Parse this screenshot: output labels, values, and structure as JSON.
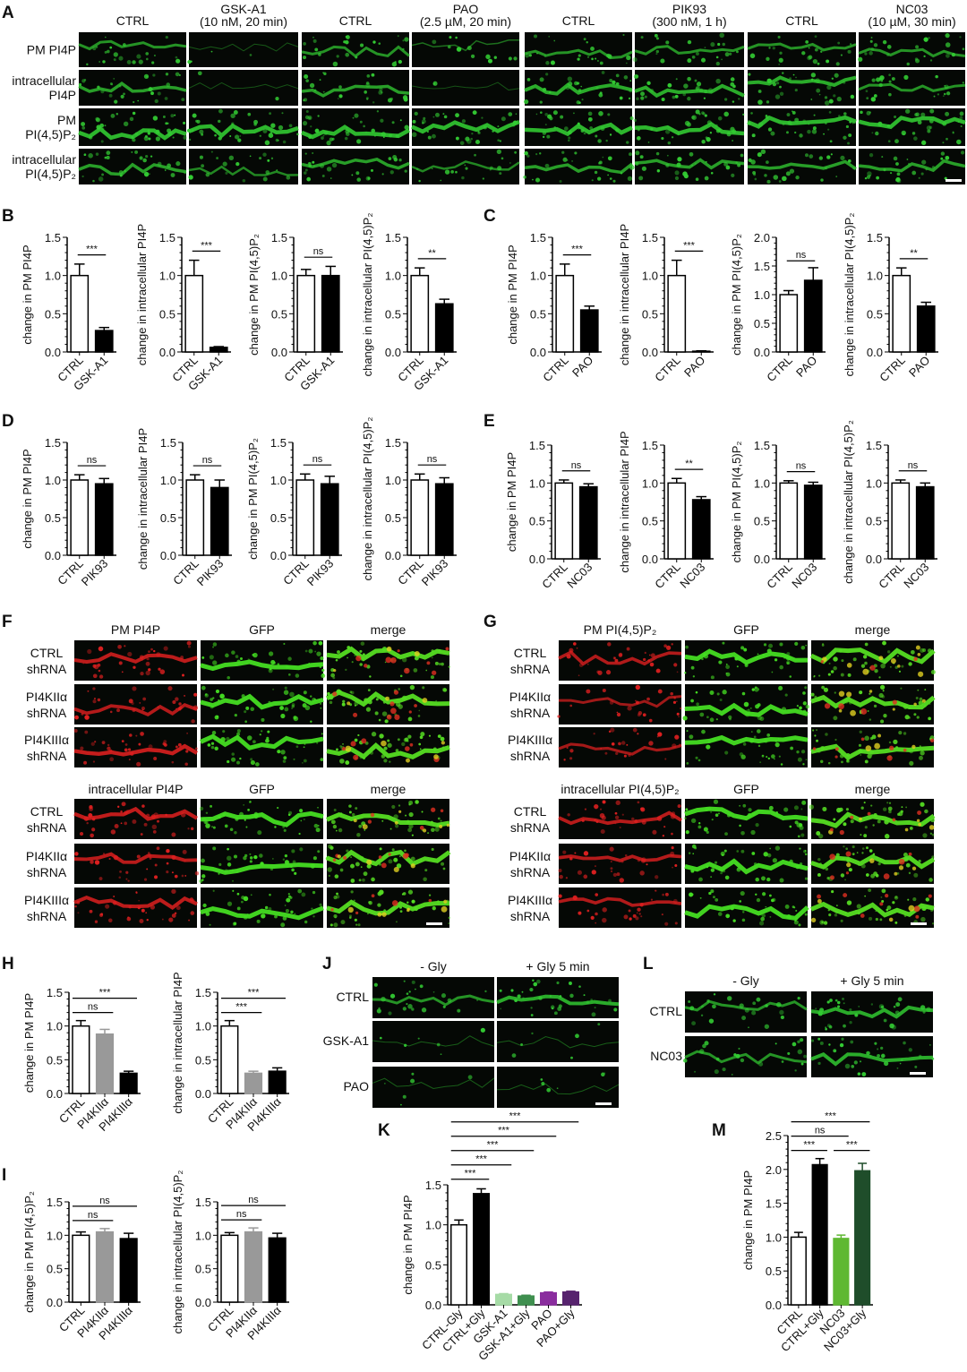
{
  "panel_letters": [
    "A",
    "B",
    "C",
    "D",
    "E",
    "F",
    "G",
    "H",
    "I",
    "J",
    "K",
    "L",
    "M"
  ],
  "panel_A": {
    "columns": [
      [
        "CTRL"
      ],
      [
        "GSK-A1",
        "(10 nM, 20 min)"
      ],
      [
        "CTRL"
      ],
      [
        "PAO",
        "(2.5 µM, 20 min)"
      ],
      [
        "CTRL"
      ],
      [
        "PIK93",
        "(300 nM, 1 h)"
      ],
      [
        "CTRL"
      ],
      [
        "NC03",
        "(10 µM, 30 min)"
      ]
    ],
    "rows": [
      [
        "PM PI4P"
      ],
      [
        "intracellular",
        "PI4P"
      ],
      [
        "PM",
        "PI(4,5)P₂"
      ],
      [
        "intracellular",
        "PI(4,5)P₂"
      ]
    ]
  },
  "panel_F": {
    "top_columns": [
      "PM PI4P",
      "GFP",
      "merge"
    ],
    "bottom_columns": [
      "intracellular PI4P",
      "GFP",
      "merge"
    ],
    "rows": [
      [
        "CTRL",
        "shRNA"
      ],
      [
        "PI4KIIα",
        "shRNA"
      ],
      [
        "PI4KIIIα",
        "shRNA"
      ]
    ]
  },
  "panel_G": {
    "top_columns": [
      "PM PI(4,5)P₂",
      "GFP",
      "merge"
    ],
    "bottom_columns": [
      "intracellular PI(4,5)P₂",
      "GFP",
      "merge"
    ],
    "rows": [
      [
        "CTRL",
        "shRNA"
      ],
      [
        "PI4KIIα",
        "shRNA"
      ],
      [
        "PI4KIIIα",
        "shRNA"
      ]
    ]
  },
  "panel_J": {
    "columns": [
      "- Gly",
      "+ Gly 5 min"
    ],
    "rows": [
      "CTRL",
      "GSK-A1",
      "PAO"
    ]
  },
  "panel_L": {
    "columns": [
      "- Gly",
      "+ Gly 5 min"
    ],
    "rows": [
      "CTRL",
      "NC03"
    ]
  },
  "colors": {
    "pm_channel": "#33cc33",
    "shRNA_channel": "#e02020",
    "white_bar": "#ffffff",
    "black_bar": "#000000"
  },
  "chart_data": [
    {
      "panel": "B",
      "type": "bar",
      "ylabel": "change in PM PI4P",
      "categories": [
        "CTRL",
        "GSK-A1"
      ],
      "values": [
        1.0,
        0.28
      ],
      "errors": [
        0.15,
        0.04
      ],
      "ylim": [
        0,
        1.5
      ],
      "yticks": [
        0,
        0.5,
        1.0,
        1.5
      ],
      "colors": [
        "#ffffff",
        "#000000"
      ],
      "significance": [
        {
          "from": 0,
          "to": 1,
          "label": "***"
        }
      ]
    },
    {
      "panel": "B",
      "type": "bar",
      "ylabel": "change in intracellular PI4P",
      "categories": [
        "CTRL",
        "GSK-A1"
      ],
      "values": [
        1.0,
        0.06
      ],
      "errors": [
        0.2,
        0.01
      ],
      "ylim": [
        0,
        1.5
      ],
      "yticks": [
        0,
        0.5,
        1.0,
        1.5
      ],
      "colors": [
        "#ffffff",
        "#000000"
      ],
      "significance": [
        {
          "from": 0,
          "to": 1,
          "label": "***"
        }
      ]
    },
    {
      "panel": "B",
      "type": "bar",
      "ylabel": "change in PM PI(4,5)P₂",
      "categories": [
        "CTRL",
        "GSK-A1"
      ],
      "values": [
        1.0,
        1.0
      ],
      "errors": [
        0.08,
        0.12
      ],
      "ylim": [
        0,
        1.5
      ],
      "yticks": [
        0,
        0.5,
        1.0,
        1.5
      ],
      "colors": [
        "#ffffff",
        "#000000"
      ],
      "significance": [
        {
          "from": 0,
          "to": 1,
          "label": "ns"
        }
      ]
    },
    {
      "panel": "B",
      "type": "bar",
      "ylabel": "change in intracellular PI(4,5)P₂",
      "categories": [
        "CTRL",
        "GSK-A1"
      ],
      "values": [
        1.0,
        0.63
      ],
      "errors": [
        0.1,
        0.06
      ],
      "ylim": [
        0,
        1.5
      ],
      "yticks": [
        0,
        0.5,
        1.0,
        1.5
      ],
      "colors": [
        "#ffffff",
        "#000000"
      ],
      "significance": [
        {
          "from": 0,
          "to": 1,
          "label": "**"
        }
      ]
    },
    {
      "panel": "C",
      "type": "bar",
      "ylabel": "change in PM PI4P",
      "categories": [
        "CTRL",
        "PAO"
      ],
      "values": [
        1.0,
        0.55
      ],
      "errors": [
        0.15,
        0.05
      ],
      "ylim": [
        0,
        1.5
      ],
      "yticks": [
        0,
        0.5,
        1.0,
        1.5
      ],
      "colors": [
        "#ffffff",
        "#000000"
      ],
      "significance": [
        {
          "from": 0,
          "to": 1,
          "label": "***"
        }
      ]
    },
    {
      "panel": "C",
      "type": "bar",
      "ylabel": "change in intracellular PI4P",
      "categories": [
        "CTRL",
        "PAO"
      ],
      "values": [
        1.0,
        0.01
      ],
      "errors": [
        0.2,
        0.005
      ],
      "ylim": [
        0,
        1.5
      ],
      "yticks": [
        0,
        0.5,
        1.0,
        1.5
      ],
      "colors": [
        "#ffffff",
        "#000000"
      ],
      "significance": [
        {
          "from": 0,
          "to": 1,
          "label": "***"
        }
      ]
    },
    {
      "panel": "C",
      "type": "bar",
      "ylabel": "change in PM PI(4,5)P₂",
      "categories": [
        "CTRL",
        "PAO"
      ],
      "values": [
        1.0,
        1.25
      ],
      "errors": [
        0.07,
        0.22
      ],
      "ylim": [
        0,
        2.0
      ],
      "yticks": [
        0,
        0.5,
        1.0,
        1.5,
        2.0
      ],
      "colors": [
        "#ffffff",
        "#000000"
      ],
      "significance": [
        {
          "from": 0,
          "to": 1,
          "label": "ns"
        }
      ]
    },
    {
      "panel": "C",
      "type": "bar",
      "ylabel": "change in intracellular PI(4,5)P₂",
      "categories": [
        "CTRL",
        "PAO"
      ],
      "values": [
        1.0,
        0.6
      ],
      "errors": [
        0.1,
        0.05
      ],
      "ylim": [
        0,
        1.5
      ],
      "yticks": [
        0,
        0.5,
        1.0,
        1.5
      ],
      "colors": [
        "#ffffff",
        "#000000"
      ],
      "significance": [
        {
          "from": 0,
          "to": 1,
          "label": "**"
        }
      ]
    },
    {
      "panel": "D",
      "type": "bar",
      "ylabel": "change in PM PI4P",
      "categories": [
        "CTRL",
        "PIK93"
      ],
      "values": [
        1.0,
        0.95
      ],
      "errors": [
        0.07,
        0.07
      ],
      "ylim": [
        0,
        1.5
      ],
      "yticks": [
        0,
        0.5,
        1.0,
        1.5
      ],
      "colors": [
        "#ffffff",
        "#000000"
      ],
      "significance": [
        {
          "from": 0,
          "to": 1,
          "label": "ns"
        }
      ]
    },
    {
      "panel": "D",
      "type": "bar",
      "ylabel": "change in intracellular PI4P",
      "categories": [
        "CTRL",
        "PIK93"
      ],
      "values": [
        1.0,
        0.9
      ],
      "errors": [
        0.07,
        0.1
      ],
      "ylim": [
        0,
        1.5
      ],
      "yticks": [
        0,
        0.5,
        1.0,
        1.5
      ],
      "colors": [
        "#ffffff",
        "#000000"
      ],
      "significance": [
        {
          "from": 0,
          "to": 1,
          "label": "ns"
        }
      ]
    },
    {
      "panel": "D",
      "type": "bar",
      "ylabel": "change in PM PI(4,5)P₂",
      "categories": [
        "CTRL",
        "PIK93"
      ],
      "values": [
        1.0,
        0.95
      ],
      "errors": [
        0.08,
        0.1
      ],
      "ylim": [
        0,
        1.5
      ],
      "yticks": [
        0,
        0.5,
        1.0,
        1.5
      ],
      "colors": [
        "#ffffff",
        "#000000"
      ],
      "significance": [
        {
          "from": 0,
          "to": 1,
          "label": "ns"
        }
      ]
    },
    {
      "panel": "D",
      "type": "bar",
      "ylabel": "change in intracellular PI(4,5)P₂",
      "categories": [
        "CTRL",
        "PIK93"
      ],
      "values": [
        1.0,
        0.95
      ],
      "errors": [
        0.08,
        0.08
      ],
      "ylim": [
        0,
        1.5
      ],
      "yticks": [
        0,
        0.5,
        1.0,
        1.5
      ],
      "colors": [
        "#ffffff",
        "#000000"
      ],
      "significance": [
        {
          "from": 0,
          "to": 1,
          "label": "ns"
        }
      ]
    },
    {
      "panel": "E",
      "type": "bar",
      "ylabel": "change in PM PI4P",
      "categories": [
        "CTRL",
        "NC03"
      ],
      "values": [
        1.0,
        0.95
      ],
      "errors": [
        0.04,
        0.04
      ],
      "ylim": [
        0,
        1.5
      ],
      "yticks": [
        0,
        0.5,
        1.0,
        1.5
      ],
      "colors": [
        "#ffffff",
        "#000000"
      ],
      "significance": [
        {
          "from": 0,
          "to": 1,
          "label": "ns"
        }
      ]
    },
    {
      "panel": "E",
      "type": "bar",
      "ylabel": "change in intracellular PI4P",
      "categories": [
        "CTRL",
        "NC03"
      ],
      "values": [
        1.0,
        0.78
      ],
      "errors": [
        0.06,
        0.04
      ],
      "ylim": [
        0,
        1.5
      ],
      "yticks": [
        0,
        0.5,
        1.0,
        1.5
      ],
      "colors": [
        "#ffffff",
        "#000000"
      ],
      "significance": [
        {
          "from": 0,
          "to": 1,
          "label": "**"
        }
      ]
    },
    {
      "panel": "E",
      "type": "bar",
      "ylabel": "change in PM PI(4,5)P₂",
      "categories": [
        "CTRL",
        "NC03"
      ],
      "values": [
        1.0,
        0.97
      ],
      "errors": [
        0.03,
        0.04
      ],
      "ylim": [
        0,
        1.5
      ],
      "yticks": [
        0,
        0.5,
        1.0,
        1.5
      ],
      "colors": [
        "#ffffff",
        "#000000"
      ],
      "significance": [
        {
          "from": 0,
          "to": 1,
          "label": "ns"
        }
      ]
    },
    {
      "panel": "E",
      "type": "bar",
      "ylabel": "change in intracellular PI(4,5)P₂",
      "categories": [
        "CTRL",
        "NC03"
      ],
      "values": [
        1.0,
        0.95
      ],
      "errors": [
        0.04,
        0.05
      ],
      "ylim": [
        0,
        1.5
      ],
      "yticks": [
        0,
        0.5,
        1.0,
        1.5
      ],
      "colors": [
        "#ffffff",
        "#000000"
      ],
      "significance": [
        {
          "from": 0,
          "to": 1,
          "label": "ns"
        }
      ]
    },
    {
      "panel": "H",
      "type": "bar",
      "ylabel": "change in PM PI4P",
      "categories": [
        "CTRL",
        "PI4KIIα",
        "PI4KIIIα"
      ],
      "values": [
        1.0,
        0.88,
        0.3
      ],
      "errors": [
        0.08,
        0.07,
        0.03
      ],
      "ylim": [
        0,
        1.5
      ],
      "yticks": [
        0,
        0.5,
        1.0,
        1.5
      ],
      "colors": [
        "#ffffff",
        "#999999",
        "#000000"
      ],
      "significance": [
        {
          "from": 0,
          "to": 1,
          "label": "ns"
        },
        {
          "from": 0,
          "to": 2,
          "label": "***"
        }
      ]
    },
    {
      "panel": "H",
      "type": "bar",
      "ylabel": "change in intracellular PI4P",
      "categories": [
        "CTRL",
        "PI4KIIα",
        "PI4KIIIα"
      ],
      "values": [
        1.0,
        0.3,
        0.33
      ],
      "errors": [
        0.08,
        0.03,
        0.05
      ],
      "ylim": [
        0,
        1.5
      ],
      "yticks": [
        0,
        0.5,
        1.0,
        1.5
      ],
      "colors": [
        "#ffffff",
        "#999999",
        "#000000"
      ],
      "significance": [
        {
          "from": 0,
          "to": 1,
          "label": "***"
        },
        {
          "from": 0,
          "to": 2,
          "label": "***"
        }
      ]
    },
    {
      "panel": "I",
      "type": "bar",
      "ylabel": "change in PM PI(4,5)P₂",
      "categories": [
        "CTRL",
        "PI4KIIα",
        "PI4KIIIα"
      ],
      "values": [
        1.0,
        1.05,
        0.95
      ],
      "errors": [
        0.05,
        0.05,
        0.08
      ],
      "ylim": [
        0,
        1.5
      ],
      "yticks": [
        0,
        0.5,
        1.0,
        1.5
      ],
      "colors": [
        "#ffffff",
        "#999999",
        "#000000"
      ],
      "significance": [
        {
          "from": 0,
          "to": 1,
          "label": "ns"
        },
        {
          "from": 0,
          "to": 2,
          "label": "ns"
        }
      ]
    },
    {
      "panel": "I",
      "type": "bar",
      "ylabel": "change in intracellular PI(4,5)P₂",
      "categories": [
        "CTRL",
        "PI4KIIα",
        "PI4KIIIα"
      ],
      "values": [
        1.0,
        1.05,
        0.96
      ],
      "errors": [
        0.04,
        0.06,
        0.07
      ],
      "ylim": [
        0,
        1.5
      ],
      "yticks": [
        0,
        0.5,
        1.0,
        1.5
      ],
      "colors": [
        "#ffffff",
        "#999999",
        "#000000"
      ],
      "significance": [
        {
          "from": 0,
          "to": 1,
          "label": "ns"
        },
        {
          "from": 0,
          "to": 2,
          "label": "ns"
        }
      ]
    },
    {
      "panel": "K",
      "type": "bar",
      "ylabel": "change in PM PI4P",
      "categories": [
        "CTRL-Gly",
        "CTRL+Gly",
        "GSK-A1",
        "GSK-A1+Gly",
        "PAO",
        "PAO+Gly"
      ],
      "values": [
        1.0,
        1.39,
        0.13,
        0.11,
        0.15,
        0.16
      ],
      "errors": [
        0.06,
        0.06,
        0.01,
        0.01,
        0.01,
        0.01
      ],
      "ylim": [
        0,
        1.5
      ],
      "yticks": [
        0,
        0.5,
        1.0,
        1.5
      ],
      "colors": [
        "#ffffff",
        "#000000",
        "#a6dba6",
        "#3f8f4f",
        "#8a2d9e",
        "#57236e"
      ],
      "significance": [
        {
          "from": 0,
          "to": 1,
          "label": "***"
        },
        {
          "from": 0,
          "to": 2,
          "label": "***"
        },
        {
          "from": 0,
          "to": 3,
          "label": "***"
        },
        {
          "from": 0,
          "to": 4,
          "label": "***"
        },
        {
          "from": 0,
          "to": 5,
          "label": "***"
        }
      ]
    },
    {
      "panel": "M",
      "type": "bar",
      "ylabel": "change in PM PI4P",
      "categories": [
        "CTRL",
        "CTRL+Gly",
        "NC03",
        "NC03+Gly"
      ],
      "values": [
        1.0,
        2.07,
        0.98,
        1.98
      ],
      "errors": [
        0.07,
        0.09,
        0.05,
        0.11
      ],
      "ylim": [
        0,
        2.5
      ],
      "yticks": [
        0,
        0.5,
        1.0,
        1.5,
        2.0,
        2.5
      ],
      "colors": [
        "#ffffff",
        "#000000",
        "#5fb832",
        "#1f4d2a"
      ],
      "significance": [
        {
          "from": 0,
          "to": 1,
          "label": "***"
        },
        {
          "from": 2,
          "to": 3,
          "label": "***"
        },
        {
          "from": 0,
          "to": 2,
          "label": "ns"
        },
        {
          "from": 0,
          "to": 3,
          "label": "***"
        }
      ]
    }
  ]
}
